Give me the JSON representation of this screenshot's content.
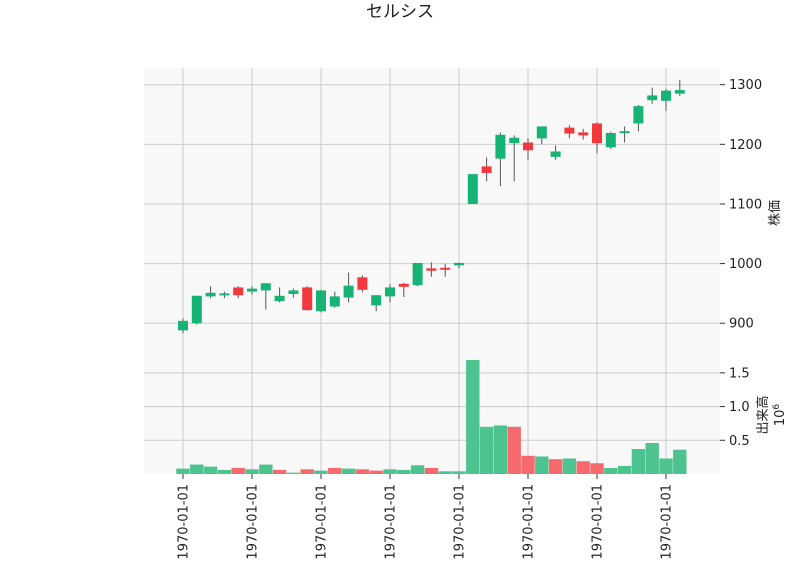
{
  "chart_data": {
    "type": "candlestick",
    "title": "セルシス",
    "price_axis": {
      "label": "株価",
      "ticks": [
        900,
        1000,
        1100,
        1200,
        1300
      ],
      "tick_labels": [
        "900",
        "1000",
        "1100",
        "1200",
        "1300"
      ],
      "ylim": [
        845,
        1328
      ],
      "side": "right"
    },
    "volume_axis": {
      "label": "出来高",
      "exponent_label": "10^6",
      "ticks": [
        0.5,
        1.0,
        1.5
      ],
      "tick_labels": [
        "0.5",
        "1.0",
        "1.5"
      ],
      "ylim": [
        0,
        1.75
      ],
      "side": "right"
    },
    "x_tick_labels": [
      "1970-01-01",
      "1970-01-01",
      "1970-01-01",
      "1970-01-01",
      "1970-01-01",
      "1970-01-01",
      "1970-01-01",
      "1970-01-01"
    ],
    "grid": true,
    "colors": {
      "up": "#15b374",
      "down": "#f5383e",
      "up_volume": "#4dc38f",
      "down_volume": "#f66a6e",
      "background": "#f8f8f8",
      "grid": "#cccccc"
    },
    "candles": [
      {
        "open": 888,
        "high": 908,
        "low": 883,
        "close": 904
      },
      {
        "open": 900,
        "high": 946,
        "low": 898,
        "close": 946
      },
      {
        "open": 945,
        "high": 962,
        "low": 942,
        "close": 951
      },
      {
        "open": 948,
        "high": 953,
        "low": 942,
        "close": 950
      },
      {
        "open": 960,
        "high": 962,
        "low": 942,
        "close": 947
      },
      {
        "open": 953,
        "high": 962,
        "low": 948,
        "close": 958
      },
      {
        "open": 955,
        "high": 967,
        "low": 923,
        "close": 967
      },
      {
        "open": 937,
        "high": 960,
        "low": 935,
        "close": 946
      },
      {
        "open": 949,
        "high": 958,
        "low": 943,
        "close": 955
      },
      {
        "open": 960,
        "high": 962,
        "low": 921,
        "close": 922
      },
      {
        "open": 920,
        "high": 956,
        "low": 918,
        "close": 955
      },
      {
        "open": 928,
        "high": 953,
        "low": 926,
        "close": 945
      },
      {
        "open": 943,
        "high": 985,
        "low": 935,
        "close": 963
      },
      {
        "open": 977,
        "high": 980,
        "low": 952,
        "close": 956
      },
      {
        "open": 930,
        "high": 947,
        "low": 920,
        "close": 947
      },
      {
        "open": 945,
        "high": 966,
        "low": 935,
        "close": 960
      },
      {
        "open": 966,
        "high": 968,
        "low": 944,
        "close": 961
      },
      {
        "open": 964,
        "high": 1001,
        "low": 962,
        "close": 1001
      },
      {
        "open": 992,
        "high": 1002,
        "low": 978,
        "close": 988
      },
      {
        "open": 993,
        "high": 1000,
        "low": 978,
        "close": 990
      },
      {
        "open": 997,
        "high": 1002,
        "low": 992,
        "close": 1001
      },
      {
        "open": 1100,
        "high": 1150,
        "low": 1100,
        "close": 1150
      },
      {
        "open": 1163,
        "high": 1178,
        "low": 1138,
        "close": 1152
      },
      {
        "open": 1176,
        "high": 1220,
        "low": 1130,
        "close": 1216
      },
      {
        "open": 1202,
        "high": 1215,
        "low": 1138,
        "close": 1211
      },
      {
        "open": 1203,
        "high": 1210,
        "low": 1173,
        "close": 1190
      },
      {
        "open": 1210,
        "high": 1230,
        "low": 1200,
        "close": 1230
      },
      {
        "open": 1179,
        "high": 1198,
        "low": 1174,
        "close": 1188
      },
      {
        "open": 1228,
        "high": 1232,
        "low": 1210,
        "close": 1218
      },
      {
        "open": 1220,
        "high": 1226,
        "low": 1208,
        "close": 1215
      },
      {
        "open": 1235,
        "high": 1237,
        "low": 1185,
        "close": 1202
      },
      {
        "open": 1195,
        "high": 1221,
        "low": 1192,
        "close": 1219
      },
      {
        "open": 1220,
        "high": 1230,
        "low": 1203,
        "close": 1222
      },
      {
        "open": 1235,
        "high": 1266,
        "low": 1222,
        "close": 1264
      },
      {
        "open": 1274,
        "high": 1295,
        "low": 1268,
        "close": 1282
      },
      {
        "open": 1273,
        "high": 1293,
        "low": 1256,
        "close": 1290
      },
      {
        "open": 1285,
        "high": 1308,
        "low": 1281,
        "close": 1291
      }
    ],
    "volume": [
      {
        "value": 0.08,
        "up": true
      },
      {
        "value": 0.14,
        "up": true
      },
      {
        "value": 0.11,
        "up": true
      },
      {
        "value": 0.06,
        "up": true
      },
      {
        "value": 0.09,
        "up": false
      },
      {
        "value": 0.07,
        "up": true
      },
      {
        "value": 0.14,
        "up": true
      },
      {
        "value": 0.06,
        "up": false
      },
      {
        "value": 0.02,
        "up": true
      },
      {
        "value": 0.07,
        "up": false
      },
      {
        "value": 0.05,
        "up": true
      },
      {
        "value": 0.09,
        "up": false
      },
      {
        "value": 0.08,
        "up": true
      },
      {
        "value": 0.07,
        "up": false
      },
      {
        "value": 0.05,
        "up": false
      },
      {
        "value": 0.07,
        "up": true
      },
      {
        "value": 0.06,
        "up": true
      },
      {
        "value": 0.13,
        "up": true
      },
      {
        "value": 0.09,
        "up": false
      },
      {
        "value": 0.04,
        "up": true
      },
      {
        "value": 0.04,
        "up": true
      },
      {
        "value": 1.69,
        "up": true
      },
      {
        "value": 0.7,
        "up": true
      },
      {
        "value": 0.72,
        "up": true
      },
      {
        "value": 0.7,
        "up": false
      },
      {
        "value": 0.27,
        "up": false
      },
      {
        "value": 0.26,
        "up": true
      },
      {
        "value": 0.22,
        "up": false
      },
      {
        "value": 0.23,
        "up": true
      },
      {
        "value": 0.19,
        "up": false
      },
      {
        "value": 0.16,
        "up": false
      },
      {
        "value": 0.09,
        "up": true
      },
      {
        "value": 0.12,
        "up": true
      },
      {
        "value": 0.37,
        "up": true
      },
      {
        "value": 0.46,
        "up": true
      },
      {
        "value": 0.23,
        "up": true
      },
      {
        "value": 0.36,
        "up": true
      }
    ]
  }
}
